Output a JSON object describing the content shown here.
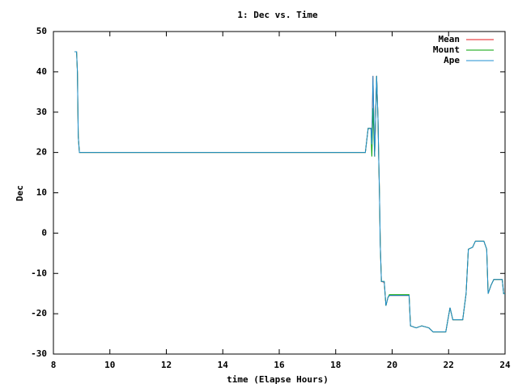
{
  "chart_data": {
    "type": "line",
    "title": "1: Dec vs. Time",
    "xlabel": "time (Elapse Hours)",
    "ylabel": "Dec",
    "x": [
      8.75,
      8.82,
      8.85,
      8.88,
      8.92,
      19.05,
      19.15,
      19.25,
      19.28,
      19.32,
      19.38,
      19.45,
      19.5,
      19.52,
      19.55,
      19.58,
      19.62,
      19.72,
      19.78,
      19.85,
      19.9,
      20.6,
      20.65,
      20.85,
      21.05,
      21.3,
      21.45,
      21.9,
      22.05,
      22.15,
      22.5,
      22.62,
      22.7,
      22.85,
      22.95,
      23.25,
      23.35,
      23.4,
      23.5,
      23.6,
      23.9,
      23.95,
      24
    ],
    "series": [
      {
        "name": "Mean",
        "color": "#e41a1c",
        "values": [
          45,
          45,
          40,
          24,
          20,
          20,
          26,
          26,
          22,
          39,
          19,
          39,
          28,
          20,
          10,
          -3,
          -12,
          -12.2,
          -18,
          -16,
          -15.5,
          -15.5,
          -23,
          -23.5,
          -23,
          -23.5,
          -24.5,
          -24.5,
          -18.5,
          -21.5,
          -21.5,
          -15,
          -4,
          -3.5,
          -2,
          -2,
          -4,
          -15,
          -13,
          -11.5,
          -11.5,
          -15,
          -15
        ]
      },
      {
        "name": "Mount",
        "color": "#00a000",
        "values": [
          45,
          45,
          40,
          24,
          20,
          20,
          26,
          26,
          19,
          31,
          19,
          39,
          28,
          20,
          10,
          -3,
          -12,
          -12,
          -18,
          -16,
          -15.3,
          -15.3,
          -23,
          -23.5,
          -23,
          -23.5,
          -24.5,
          -24.5,
          -18.5,
          -21.5,
          -21.5,
          -15,
          -4,
          -3.5,
          -2,
          -2,
          -4,
          -15,
          -13,
          -11.5,
          -11.5,
          -15,
          -15
        ]
      },
      {
        "name": "Ape",
        "color": "#1f8fd0",
        "values": [
          45,
          45,
          40,
          24,
          20,
          20,
          26,
          26,
          22,
          39,
          19,
          39,
          28,
          20,
          10,
          -3,
          -12,
          -12,
          -18,
          -16,
          -15.5,
          -15.5,
          -23,
          -23.5,
          -23,
          -23.5,
          -24.5,
          -24.5,
          -18.5,
          -21.5,
          -21.5,
          -15,
          -4,
          -3.5,
          -2,
          -2,
          -4,
          -15,
          -13,
          -11.5,
          -11.5,
          -15,
          -15
        ]
      }
    ],
    "xlim": [
      8,
      24
    ],
    "xticks": [
      8,
      10,
      12,
      14,
      16,
      18,
      20,
      22,
      24
    ],
    "ylim": [
      -30,
      50
    ],
    "yticks": [
      -30,
      -20,
      -10,
      0,
      10,
      20,
      30,
      40,
      50
    ],
    "grid": false,
    "legend": "top-right"
  }
}
